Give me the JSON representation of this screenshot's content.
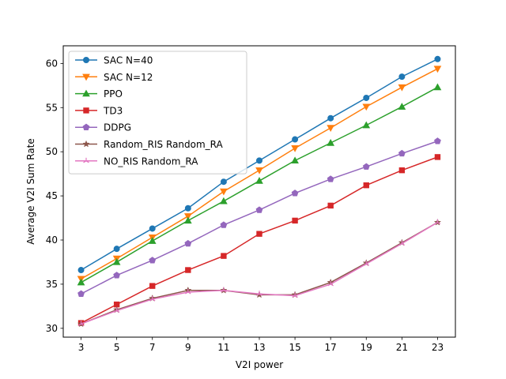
{
  "chart_data": {
    "type": "line",
    "title": "",
    "xlabel": "V2I power",
    "ylabel": "Average V2I Sum Rate",
    "x": [
      3,
      5,
      7,
      9,
      11,
      13,
      15,
      17,
      19,
      21,
      23
    ],
    "xticks": [
      3,
      5,
      7,
      9,
      11,
      13,
      15,
      17,
      19,
      21,
      23
    ],
    "xlim": [
      2,
      24
    ],
    "yticks": [
      30,
      35,
      40,
      45,
      50,
      55,
      60
    ],
    "ylim": [
      29.0,
      62.0
    ],
    "grid": false,
    "legend_position": "upper-left",
    "series": [
      {
        "name": "SAC N=40",
        "color": "#1f77b4",
        "marker": "circle",
        "values": [
          36.6,
          39.0,
          41.3,
          43.6,
          46.6,
          49.0,
          51.4,
          53.8,
          56.1,
          58.5,
          60.5
        ]
      },
      {
        "name": "SAC N=12",
        "color": "#ff7f0e",
        "marker": "triangle-down",
        "values": [
          35.6,
          37.9,
          40.3,
          42.7,
          45.5,
          47.9,
          50.4,
          52.7,
          55.1,
          57.3,
          59.4
        ]
      },
      {
        "name": "PPO",
        "color": "#2ca02c",
        "marker": "triangle-up",
        "values": [
          35.2,
          37.5,
          39.9,
          42.2,
          44.4,
          46.7,
          49.0,
          51.0,
          53.0,
          55.1,
          57.3
        ]
      },
      {
        "name": "TD3",
        "color": "#d62728",
        "marker": "square",
        "values": [
          30.6,
          32.7,
          34.8,
          36.6,
          38.2,
          40.7,
          42.2,
          43.9,
          46.2,
          47.9,
          49.4
        ]
      },
      {
        "name": "DDPG",
        "color": "#9467bd",
        "marker": "pentagon",
        "values": [
          33.9,
          36.0,
          37.7,
          39.6,
          41.7,
          43.4,
          45.3,
          46.9,
          48.3,
          49.8,
          51.2
        ]
      },
      {
        "name": "Random_RIS Random_RA",
        "color": "#8c564b",
        "marker": "star",
        "values": [
          30.5,
          32.1,
          33.4,
          34.3,
          34.3,
          33.8,
          33.8,
          35.2,
          37.4,
          39.7,
          42.0
        ]
      },
      {
        "name": "NO_RIS Random_RA",
        "color": "#e377c2",
        "marker": "tri",
        "values": [
          30.5,
          32.0,
          33.3,
          34.1,
          34.3,
          33.9,
          33.7,
          35.0,
          37.3,
          39.6,
          42.0
        ]
      }
    ]
  }
}
